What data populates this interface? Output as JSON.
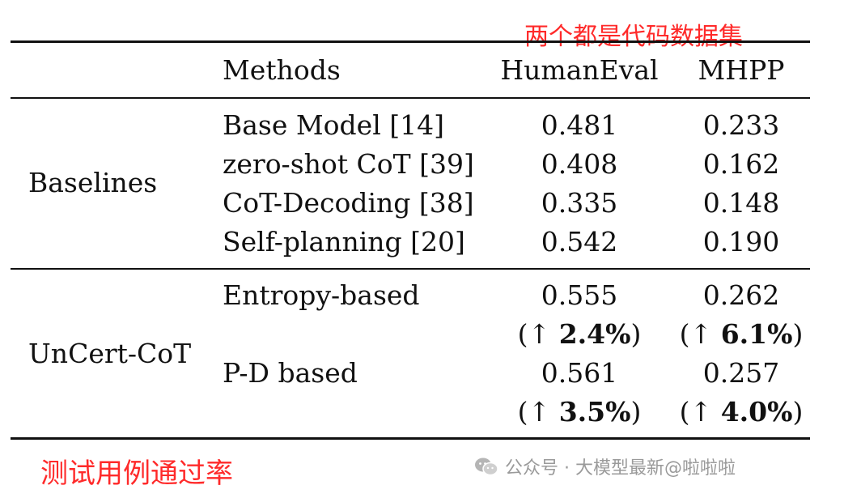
{
  "annotation_top": "两个都是代码数据集",
  "annotation_bottom": "测试用例通过率",
  "watermark": "公众号 · 大模型最新@啦啦啦",
  "headers": {
    "methods": "Methods",
    "col1": "HumanEval",
    "col2": "MHPP"
  },
  "groups": {
    "baselines": {
      "label": "Baselines",
      "rows": [
        {
          "method": "Base Model [14]",
          "v1": "0.481",
          "v2": "0.233"
        },
        {
          "method": "zero-shot CoT [39]",
          "v1": "0.408",
          "v2": "0.162"
        },
        {
          "method": "CoT-Decoding [38]",
          "v1": "0.335",
          "v2": "0.148"
        },
        {
          "method": "Self-planning [20]",
          "v1": "0.542",
          "v2": "0.190"
        }
      ]
    },
    "uncert": {
      "label": "UnCert-CoT",
      "rows": [
        {
          "method": "Entropy-based",
          "v1": "0.555",
          "v2": "0.262",
          "g1": "2.4%",
          "g2": "6.1%"
        },
        {
          "method": "P-D based",
          "v1": "0.561",
          "v2": "0.257",
          "g1": "3.5%",
          "g2": "4.0%"
        }
      ]
    }
  },
  "arrow": "↑"
}
